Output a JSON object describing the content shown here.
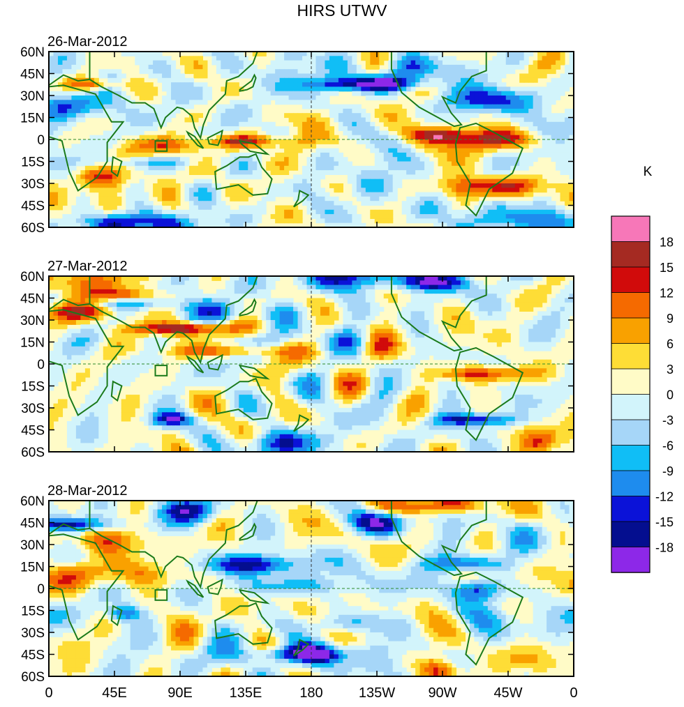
{
  "title": "HIRS UTWV",
  "panels": [
    {
      "date": "26-Mar-2012"
    },
    {
      "date": "27-Mar-2012"
    },
    {
      "date": "28-Mar-2012"
    }
  ],
  "lat_labels": [
    "60N",
    "45N",
    "30N",
    "15N",
    "0",
    "15S",
    "30S",
    "45S",
    "60S"
  ],
  "lon_labels": [
    "0",
    "45E",
    "90E",
    "135E",
    "180",
    "135W",
    "90W",
    "45W",
    "0"
  ],
  "colorbar": {
    "unit": "K",
    "ticks": [
      "18",
      "15",
      "12",
      "9",
      "6",
      "3",
      "0",
      "-3",
      "-6",
      "-9",
      "-12",
      "-15",
      "-18"
    ],
    "colors": [
      "#f777b8",
      "#a52a22",
      "#d10b0b",
      "#f56a00",
      "#f9a100",
      "#fedd36",
      "#fffbc7",
      "#d2f4fb",
      "#a6d6f8",
      "#10bef6",
      "#1e8cee",
      "#0b12d8",
      "#040e8f",
      "#8d28e8"
    ]
  },
  "colors": {
    "coast": "#1a7a1a",
    "grid": "#2a8a2a"
  }
}
